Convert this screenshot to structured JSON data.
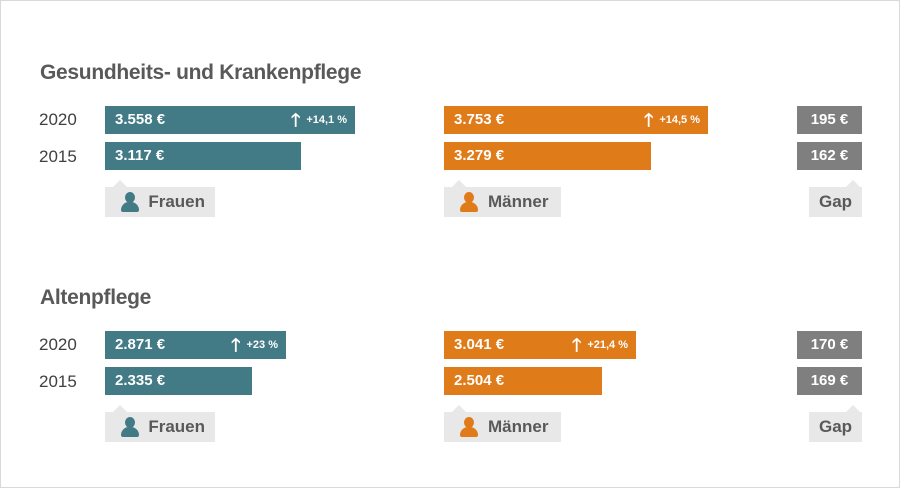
{
  "colors": {
    "frauen": "#427a85",
    "maenner": "#e07b1a",
    "gap": "#7f7f7f"
  },
  "chart_data": {
    "type": "bar",
    "unit": "€",
    "years": [
      "2020",
      "2015"
    ],
    "legend": {
      "frauen": "Frauen",
      "maenner": "Männer",
      "gap": "Gap"
    },
    "sections": [
      {
        "title": "Gesundheits- und Krankenpflege",
        "frauen": {
          "2020": "3.558 €",
          "2015": "3.117 €",
          "change": "+14,1 %",
          "values": [
            3558,
            3117
          ]
        },
        "maenner": {
          "2020": "3.753 €",
          "2015": "3.279 €",
          "change": "+14,5 %",
          "values": [
            3753,
            3279
          ]
        },
        "gap": {
          "2020": "195 €",
          "2015": "162 €",
          "values": [
            195,
            162
          ]
        }
      },
      {
        "title": "Altenpflege",
        "frauen": {
          "2020": "2.871 €",
          "2015": "2.335 €",
          "change": "+23 %",
          "values": [
            2871,
            2335
          ]
        },
        "maenner": {
          "2020": "3.041 €",
          "2015": "2.504 €",
          "change": "+21,4 %",
          "values": [
            3041,
            2504
          ]
        },
        "gap": {
          "2020": "170 €",
          "2015": "169 €",
          "values": [
            170,
            169
          ]
        }
      }
    ]
  }
}
